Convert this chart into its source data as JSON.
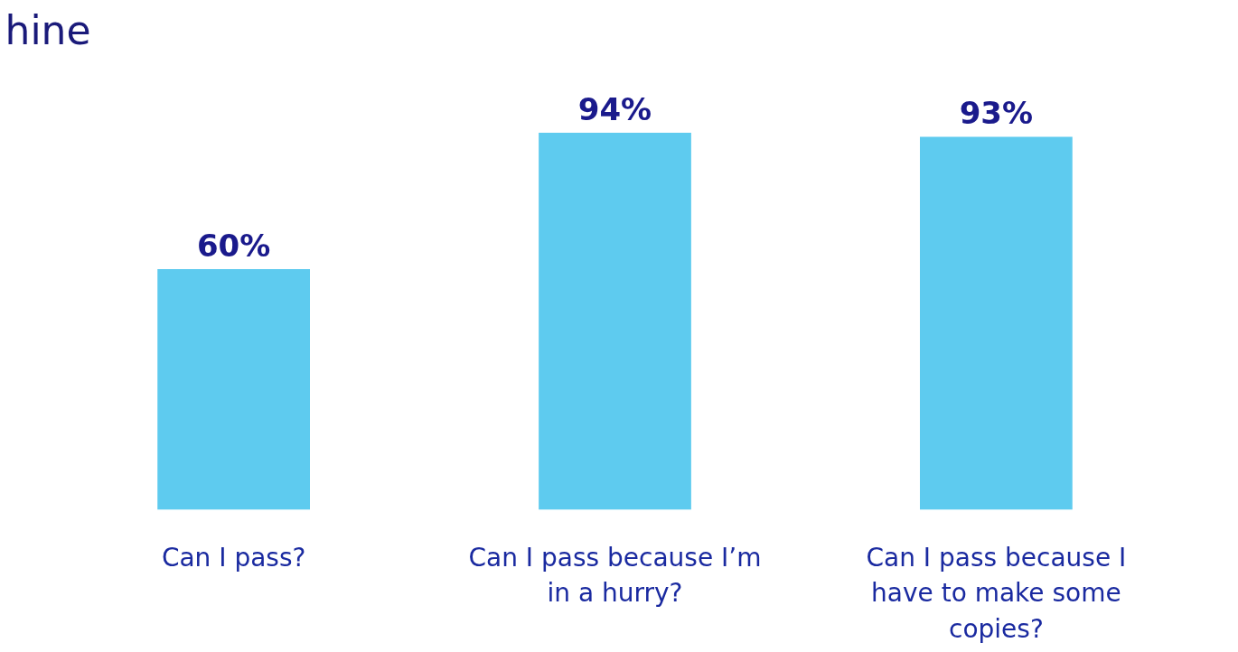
{
  "chart_data": {
    "type": "bar",
    "title": "hine",
    "categories": [
      "Can I pass?",
      "Can I pass because I’m in a hurry?",
      "Can I pass because I have to make some copies?"
    ],
    "values": [
      60,
      94,
      93
    ],
    "value_labels": [
      "60%",
      "94%",
      "93%"
    ],
    "color": "#5ecbef",
    "grid": false
  }
}
